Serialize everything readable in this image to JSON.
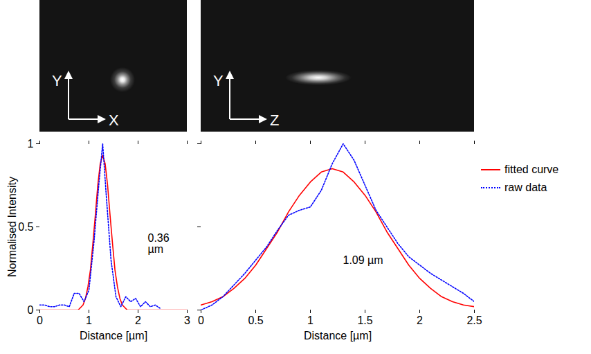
{
  "images": [
    {
      "horizontal": "X",
      "vertical": "Y"
    },
    {
      "horizontal": "Z",
      "vertical": "Y"
    }
  ],
  "chart_data": [
    {
      "type": "line",
      "xlabel": "Distance [µm]",
      "ylabel": "Normalised Intensity",
      "annotation": "0.36 µm",
      "xlim": [
        0,
        3
      ],
      "xticks": [
        0,
        1,
        2,
        3
      ],
      "ylim": [
        0,
        1
      ],
      "yticks": [
        0,
        0.5,
        1
      ],
      "series": [
        {
          "name": "fitted curve",
          "color": "#ff0000",
          "line_style": "solid",
          "x": [
            0,
            0.5,
            0.78,
            0.88,
            0.93,
            0.98,
            1.03,
            1.08,
            1.13,
            1.18,
            1.23,
            1.28,
            1.33,
            1.38,
            1.43,
            1.48,
            1.53,
            1.58,
            1.63,
            1.68,
            1.78,
            2.2,
            3
          ],
          "values": [
            0,
            0,
            0,
            0.03,
            0.07,
            0.14,
            0.24,
            0.4,
            0.57,
            0.75,
            0.88,
            0.93,
            0.88,
            0.75,
            0.57,
            0.4,
            0.24,
            0.14,
            0.07,
            0.03,
            0,
            0,
            0
          ]
        },
        {
          "name": "raw data",
          "color": "#0000ff",
          "line_style": "dotted",
          "x": [
            0,
            0.1,
            0.2,
            0.3,
            0.4,
            0.5,
            0.6,
            0.7,
            0.8,
            0.9,
            1.0,
            1.1,
            1.2,
            1.28,
            1.35,
            1.45,
            1.55,
            1.65,
            1.75,
            1.85,
            1.95,
            2.05,
            2.15,
            2.25,
            2.35,
            2.45
          ],
          "values": [
            0.03,
            0.03,
            0.02,
            0.02,
            0.03,
            0.03,
            0.02,
            0.1,
            0.1,
            0.05,
            0.12,
            0.4,
            0.75,
            1.0,
            0.7,
            0.3,
            0.08,
            0.02,
            0.08,
            0.05,
            0.07,
            0.02,
            0.05,
            0.02,
            0.03,
            0.01
          ]
        }
      ]
    },
    {
      "type": "line",
      "xlabel": "Distance [µm]",
      "annotation": "1.09 µm",
      "tick_labels": "x",
      "legend": "right",
      "xlim": [
        0,
        2.5
      ],
      "xticks": [
        0,
        0.5,
        1,
        1.5,
        2,
        2.5
      ],
      "ylim": [
        0,
        1
      ],
      "yticks": [
        0,
        0.5,
        1
      ],
      "series": [
        {
          "name": "fitted curve",
          "color": "#ff0000",
          "line_style": "solid",
          "x": [
            0,
            0.1,
            0.2,
            0.3,
            0.4,
            0.5,
            0.6,
            0.7,
            0.8,
            0.9,
            1.0,
            1.1,
            1.2,
            1.3,
            1.4,
            1.5,
            1.6,
            1.7,
            1.8,
            1.9,
            2.0,
            2.1,
            2.2,
            2.3,
            2.4,
            2.5
          ],
          "values": [
            0.03,
            0.05,
            0.08,
            0.13,
            0.19,
            0.27,
            0.37,
            0.47,
            0.59,
            0.69,
            0.77,
            0.83,
            0.85,
            0.83,
            0.77,
            0.69,
            0.59,
            0.47,
            0.37,
            0.27,
            0.19,
            0.13,
            0.08,
            0.05,
            0.03,
            0.02
          ]
        },
        {
          "name": "raw data",
          "color": "#0000ff",
          "line_style": "dotted",
          "x": [
            0,
            0.1,
            0.2,
            0.3,
            0.4,
            0.5,
            0.6,
            0.7,
            0.8,
            0.9,
            1.0,
            1.1,
            1.2,
            1.3,
            1.4,
            1.5,
            1.6,
            1.7,
            1.8,
            1.9,
            2.0,
            2.1,
            2.2,
            2.3,
            2.4,
            2.5
          ],
          "values": [
            0.0,
            0.03,
            0.08,
            0.15,
            0.22,
            0.3,
            0.38,
            0.48,
            0.57,
            0.6,
            0.62,
            0.72,
            0.88,
            1.0,
            0.9,
            0.75,
            0.6,
            0.5,
            0.4,
            0.32,
            0.27,
            0.22,
            0.18,
            0.14,
            0.1,
            0.05
          ]
        }
      ]
    }
  ]
}
